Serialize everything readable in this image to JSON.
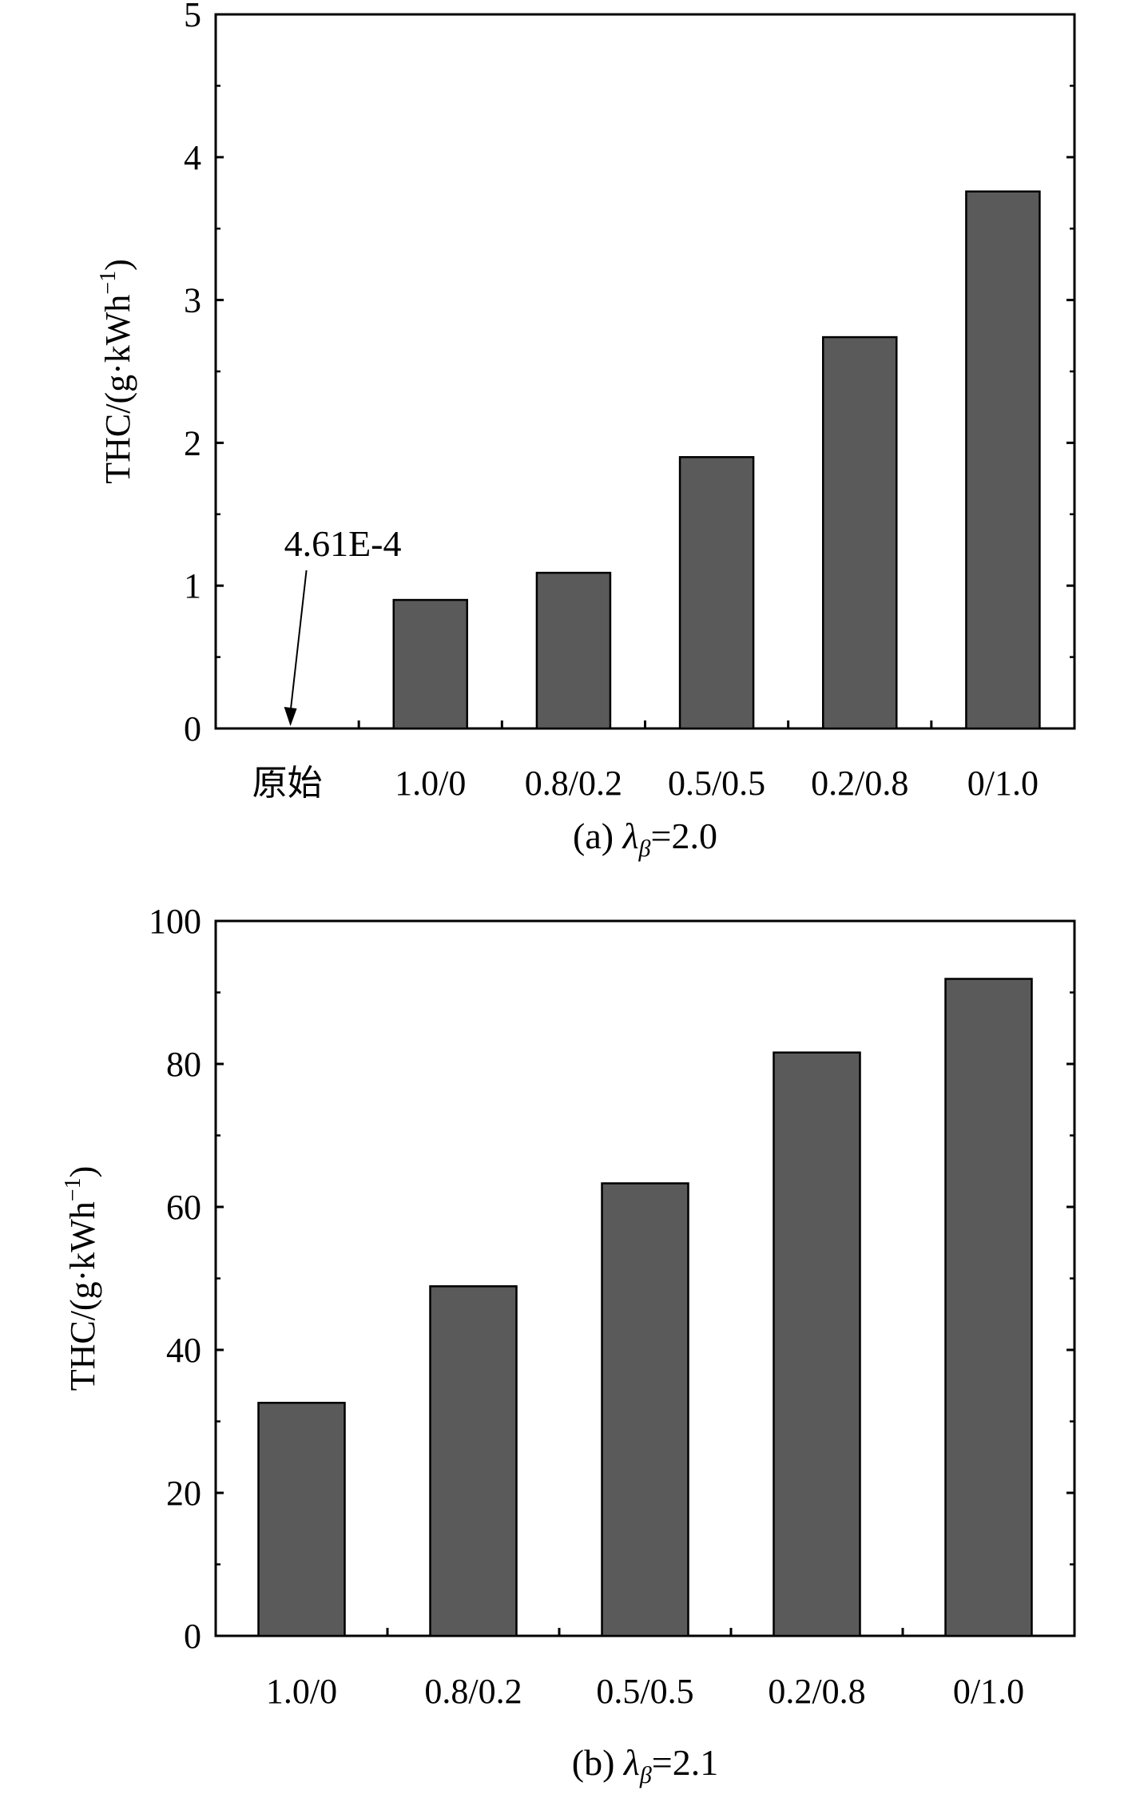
{
  "colors": {
    "bar_fill": "#5a5a5a",
    "bar_stroke": "#000000",
    "axis": "#000000",
    "background": "#ffffff"
  },
  "chart_data": [
    {
      "type": "bar",
      "categories": [
        "原始",
        "1.0/0",
        "0.8/0.2",
        "0.5/0.5",
        "0.2/0.8",
        "0/1.0"
      ],
      "values": [
        0.000461,
        0.9,
        1.09,
        1.9,
        2.74,
        3.76
      ],
      "ylim": [
        0,
        5
      ],
      "yticks": [
        "0",
        "1",
        "2",
        "3",
        "4",
        "5"
      ],
      "ylabel": {
        "main": "THC/(g·kWh",
        "sup": "−1",
        "close": ")"
      },
      "caption": {
        "prefix": "(a) ",
        "lambda": "λ",
        "sub": "β",
        "suffix": "=2.0"
      },
      "annotation": {
        "text": "4.61E-4",
        "category": "原始"
      },
      "grid": false,
      "legend": "none"
    },
    {
      "type": "bar",
      "categories": [
        "1.0/0",
        "0.8/0.2",
        "0.5/0.5",
        "0.2/0.8",
        "0/1.0"
      ],
      "values": [
        32.6,
        48.9,
        63.3,
        81.6,
        91.9
      ],
      "ylim": [
        0,
        100
      ],
      "yticks": [
        "0",
        "20",
        "40",
        "60",
        "80",
        "100"
      ],
      "ylabel": {
        "main": "THC/(g·kWh",
        "sup": "−1",
        "close": ")"
      },
      "caption": {
        "prefix": "(b) ",
        "lambda": "λ",
        "sub": "β",
        "suffix": "=2.1"
      },
      "grid": false,
      "legend": "none"
    }
  ]
}
